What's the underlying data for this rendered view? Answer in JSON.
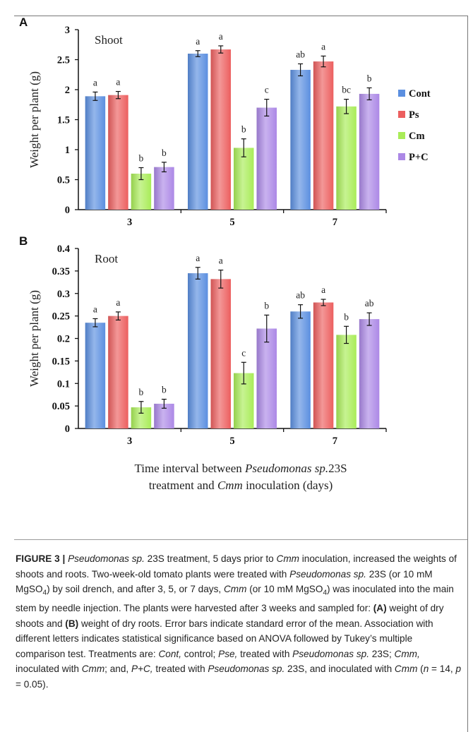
{
  "panel_a": {
    "letter": "A"
  },
  "panel_b": {
    "letter": "B"
  },
  "shared": {
    "ylabel": "Weight per plant (g)",
    "xcaption_line1_pre": "Time interval between ",
    "xcaption_line1_italic": "Pseudomonas sp.",
    "xcaption_line1_post": "23S",
    "xcaption_line2_pre": "treatment and ",
    "xcaption_line2_italic": "Cmm",
    "xcaption_line2_post": " inoculation (days)"
  },
  "colors": {
    "Cont": "#5b8fe0",
    "Ps": "#ec5f5f",
    "Cm": "#a9ec58",
    "P+C": "#ac88e6"
  },
  "chart_data": [
    {
      "type": "bar",
      "title": "Shoot",
      "ylabel": "Weight per plant (g)",
      "categories": [
        "3",
        "5",
        "7"
      ],
      "ylim": [
        0,
        3
      ],
      "yticks": [
        "0",
        "0.5",
        "1",
        "1.5",
        "2",
        "2.5",
        "3"
      ],
      "legend_position": "right",
      "series": [
        {
          "name": "Cont",
          "values": [
            1.89,
            2.6,
            2.33
          ],
          "errors": [
            0.07,
            0.05,
            0.1
          ],
          "letters": [
            "a",
            "a",
            "ab"
          ]
        },
        {
          "name": "Ps",
          "values": [
            1.91,
            2.67,
            2.47
          ],
          "errors": [
            0.06,
            0.06,
            0.09
          ],
          "letters": [
            "a",
            "a",
            "a"
          ]
        },
        {
          "name": "Cm",
          "values": [
            0.6,
            1.03,
            1.72
          ],
          "errors": [
            0.1,
            0.15,
            0.12
          ],
          "letters": [
            "b",
            "b",
            "bc"
          ]
        },
        {
          "name": "P+C",
          "values": [
            0.71,
            1.7,
            1.93
          ],
          "errors": [
            0.08,
            0.14,
            0.1
          ],
          "letters": [
            "b",
            "c",
            "b"
          ]
        }
      ]
    },
    {
      "type": "bar",
      "title": "Root",
      "ylabel": "Weight per plant (g)",
      "categories": [
        "3",
        "5",
        "7"
      ],
      "ylim": [
        0,
        0.4
      ],
      "yticks": [
        "0",
        "0.05",
        "0.1",
        "0.15",
        "0.2",
        "0.25",
        "0.3",
        "0.35",
        "0.4"
      ],
      "series": [
        {
          "name": "Cont",
          "values": [
            0.235,
            0.345,
            0.26
          ],
          "errors": [
            0.009,
            0.013,
            0.015
          ],
          "letters": [
            "a",
            "a",
            "ab"
          ]
        },
        {
          "name": "Ps",
          "values": [
            0.25,
            0.332,
            0.28
          ],
          "errors": [
            0.009,
            0.02,
            0.007
          ],
          "letters": [
            "a",
            "a",
            "a"
          ]
        },
        {
          "name": "Cm",
          "values": [
            0.047,
            0.123,
            0.208
          ],
          "errors": [
            0.013,
            0.024,
            0.019
          ],
          "letters": [
            "b",
            "c",
            "b"
          ]
        },
        {
          "name": "P+C",
          "values": [
            0.055,
            0.222,
            0.243
          ],
          "errors": [
            0.01,
            0.03,
            0.014
          ],
          "letters": [
            "b",
            "b",
            "ab"
          ]
        }
      ]
    }
  ],
  "caption": {
    "runs": [
      {
        "t": "FIGURE 3 | ",
        "s": "b"
      },
      {
        "t": "Pseudomonas sp.",
        "s": "i"
      },
      {
        "t": " 23S treatment, 5 days prior to "
      },
      {
        "t": "Cmm",
        "s": "i"
      },
      {
        "t": " inoculation, increased the weights of shoots and roots. Two-week-old tomato plants were treated with "
      },
      {
        "t": "Pseudomonas sp.",
        "s": "i"
      },
      {
        "t": " 23S (or 10 mM MgSO"
      },
      {
        "t": "4",
        "s": "sub"
      },
      {
        "t": ") by soil drench, and after 3, 5, or 7 days, "
      },
      {
        "t": "Cmm",
        "s": "i"
      },
      {
        "t": " (or 10 mM MgSO"
      },
      {
        "t": "4",
        "s": "sub"
      },
      {
        "t": ") was inoculated into the main stem by needle injection. The plants were harvested after 3 weeks and sampled for: "
      },
      {
        "t": "(A)",
        "s": "b"
      },
      {
        "t": " weight of dry shoots and "
      },
      {
        "t": "(B)",
        "s": "b"
      },
      {
        "t": " weight of dry roots. Error bars indicate standard error of the mean. Association with different letters indicates statistical significance based on ANOVA followed by Tukey’s multiple comparison test. Treatments are: "
      },
      {
        "t": "Cont,",
        "s": "i"
      },
      {
        "t": " control; "
      },
      {
        "t": "Pse,",
        "s": "i"
      },
      {
        "t": " treated with "
      },
      {
        "t": "Pseudomonas sp.",
        "s": "i"
      },
      {
        "t": " 23S; "
      },
      {
        "t": "Cmm,",
        "s": "i"
      },
      {
        "t": " inoculated with "
      },
      {
        "t": "Cmm",
        "s": "i"
      },
      {
        "t": "; and, "
      },
      {
        "t": "P+C,",
        "s": "i"
      },
      {
        "t": " treated with "
      },
      {
        "t": "Pseudomonas sp.",
        "s": "i"
      },
      {
        "t": " 23S, and inoculated with "
      },
      {
        "t": "Cmm",
        "s": "i"
      },
      {
        "t": " ("
      },
      {
        "t": "n",
        "s": "i"
      },
      {
        "t": " = 14, "
      },
      {
        "t": "p",
        "s": "i"
      },
      {
        "t": " = 0.05)."
      }
    ]
  }
}
